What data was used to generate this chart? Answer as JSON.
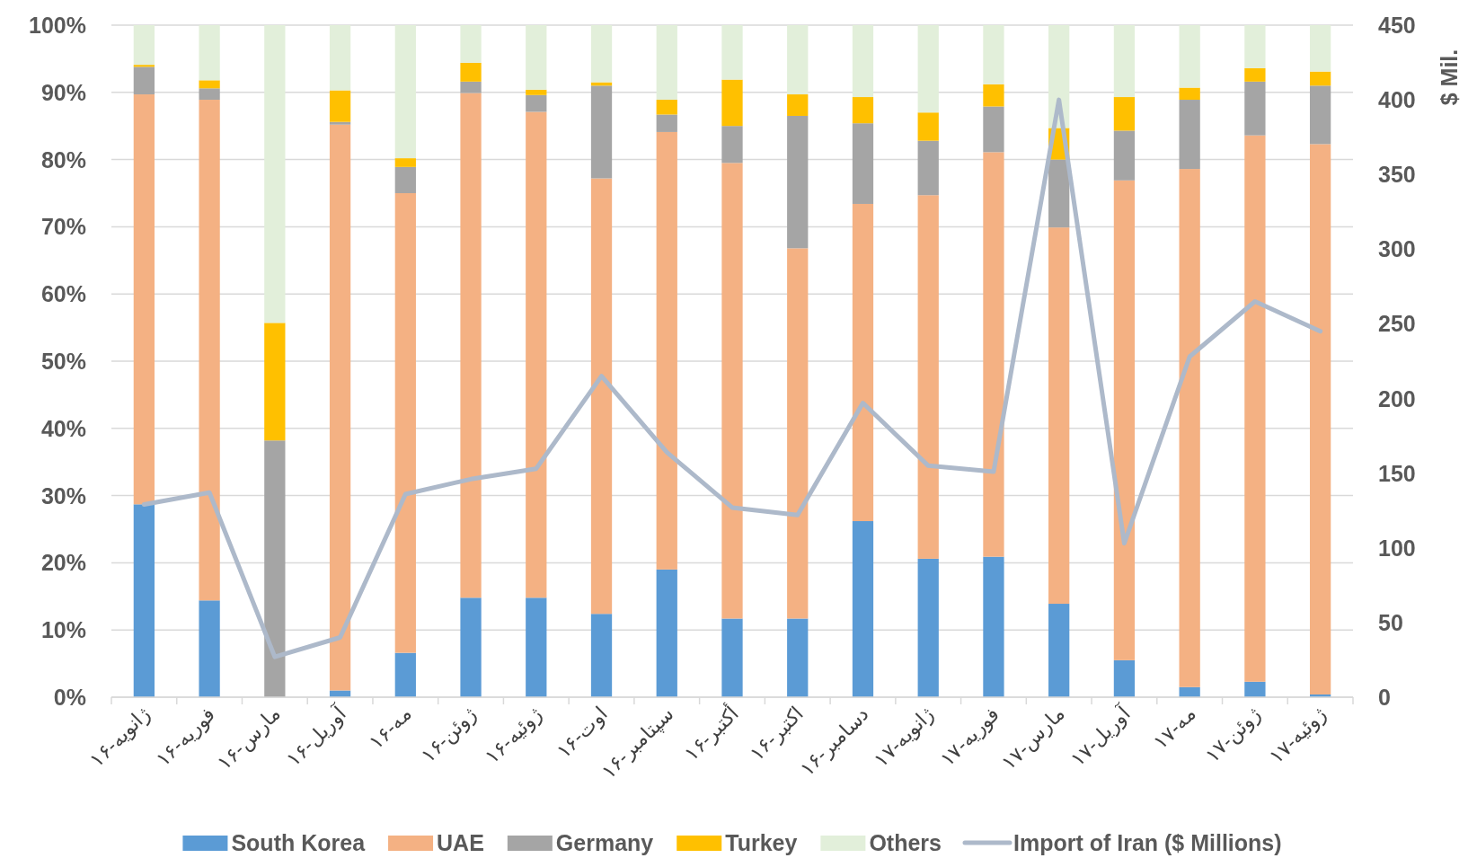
{
  "chart_data": {
    "type": "bar",
    "stacked": true,
    "grid": "y",
    "legend": "bottom",
    "categories": [
      "ژانویه-۱۶",
      "فوریه-۱۶",
      "مارس-۱۶",
      "آوریل-۱۶",
      "مه-۱۶",
      "ژوئن-۱۶",
      "ژوئیه-۱۶",
      "اوت-۱۶",
      "سپتامبر-۱۶",
      "أکتبر-۱۶",
      "اکتبر-۱۶",
      "دسامبر-۱۶",
      "ژانویه-۱۷",
      "فوریه-۱۷",
      "مارس-۱۷",
      "آوریل-۱۷",
      "مه-۱۷",
      "ژوئن-۱۷",
      "ژوئیه-۱۷"
    ],
    "ylim": [
      0,
      100
    ],
    "yticks": [
      {
        "value": 0,
        "label": "0%"
      },
      {
        "value": 10,
        "label": "10%"
      },
      {
        "value": 20,
        "label": "20%"
      },
      {
        "value": 30,
        "label": "30%"
      },
      {
        "value": 40,
        "label": "40%"
      },
      {
        "value": 50,
        "label": "50%"
      },
      {
        "value": 60,
        "label": "60%"
      },
      {
        "value": 70,
        "label": "70%"
      },
      {
        "value": 80,
        "label": "80%"
      },
      {
        "value": 90,
        "label": "90%"
      },
      {
        "value": 100,
        "label": "100%"
      }
    ],
    "y2lim": [
      0,
      450
    ],
    "y2ticks": [
      0,
      50,
      100,
      150,
      200,
      250,
      300,
      350,
      400,
      450
    ],
    "y2label": "$ Mil.",
    "series": [
      {
        "name": "South Korea",
        "color": "#5b9bd5",
        "values": [
          28.7,
          14.4,
          0,
          1.0,
          6.6,
          14.8,
          14.8,
          12.4,
          19.0,
          11.7,
          11.7,
          26.2,
          20.6,
          20.9,
          13.9,
          5.5,
          1.5,
          2.3,
          0.4
        ]
      },
      {
        "name": "UAE",
        "color": "#f4b183",
        "values": [
          61.0,
          74.5,
          0,
          84.2,
          68.4,
          75.1,
          72.3,
          64.8,
          65.1,
          67.8,
          55.1,
          47.2,
          54.1,
          60.2,
          56.0,
          71.4,
          77.1,
          81.3,
          81.9
        ]
      },
      {
        "name": "Germany",
        "color": "#a5a5a5",
        "values": [
          4.1,
          1.7,
          38.2,
          0.4,
          3.9,
          1.7,
          2.5,
          13.8,
          2.6,
          5.5,
          19.7,
          12.0,
          8.1,
          6.8,
          10.1,
          7.4,
          10.3,
          8.0,
          8.7
        ]
      },
      {
        "name": "Turkey",
        "color": "#ffc000",
        "values": [
          0.3,
          1.2,
          17.5,
          4.7,
          1.3,
          2.8,
          0.8,
          0.5,
          2.2,
          6.9,
          3.2,
          3.9,
          4.2,
          3.3,
          4.7,
          5.0,
          1.8,
          2.0,
          2.1
        ]
      },
      {
        "name": "Others",
        "color": "#e2efda",
        "values": [
          5.9,
          8.2,
          44.3,
          9.7,
          19.8,
          5.6,
          9.6,
          8.5,
          11.1,
          8.1,
          10.3,
          10.7,
          13.0,
          8.8,
          15.3,
          10.7,
          9.3,
          6.4,
          6.9
        ]
      },
      {
        "name": "Import of Iran ($ Millions)",
        "type": "line",
        "axis": "y2",
        "color": "#adb9ca",
        "values": [
          129,
          137,
          27,
          40,
          136,
          146,
          153,
          215,
          164,
          127,
          122,
          197,
          155,
          151,
          400,
          103,
          228,
          265,
          245
        ]
      }
    ]
  }
}
